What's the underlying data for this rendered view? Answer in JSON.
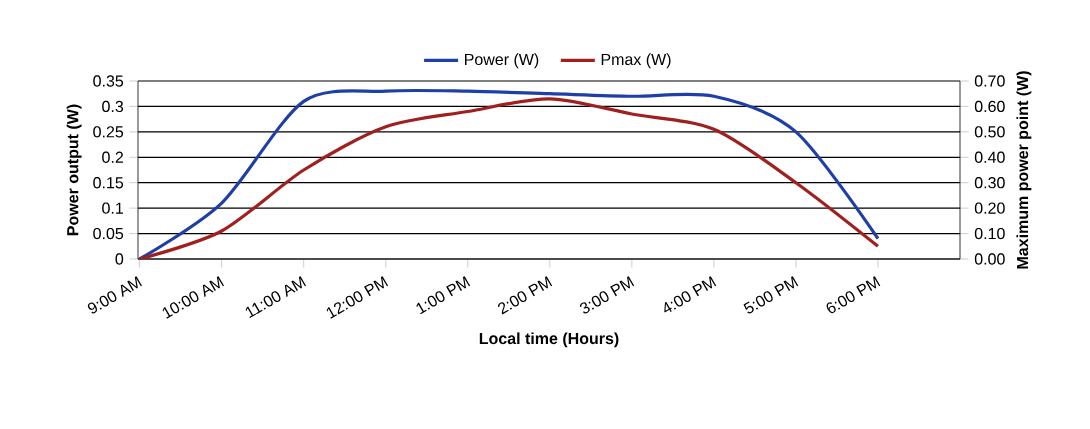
{
  "chart_data": {
    "type": "line",
    "xlabel": "Local time (Hours)",
    "ylabel": "Power output (W)",
    "y2label": "Maximum power point (W)",
    "categories": [
      "9:00 AM",
      "10:00 AM",
      "11:00 AM",
      "12:00 PM",
      "1:00 PM",
      "2:00 PM",
      "3:00 PM",
      "4:00 PM",
      "5:00 PM",
      "6:00 PM"
    ],
    "series": [
      {
        "name": "Power (W)",
        "color": "#1f3fa8",
        "values": [
          0,
          0.11,
          0.31,
          0.33,
          0.33,
          0.325,
          0.32,
          0.32,
          0.25,
          0.04
        ]
      },
      {
        "name": "Pmax (W)",
        "color": "#a02020",
        "axis": "y2",
        "values": [
          0,
          0.11,
          0.35,
          0.52,
          0.58,
          0.63,
          0.57,
          0.51,
          0.3,
          0.05
        ]
      }
    ],
    "ylim": [
      0,
      0.35
    ],
    "yticks": [
      0,
      0.05,
      0.1,
      0.15,
      0.2,
      0.25,
      0.3,
      0.35
    ],
    "y2lim": [
      0,
      0.7
    ],
    "y2ticks": [
      {
        "value": 0,
        "label": "0.00"
      },
      {
        "value": 0.1,
        "label": "0.10"
      },
      {
        "value": 0.2,
        "label": "0.20"
      },
      {
        "value": 0.3,
        "label": "0.30"
      },
      {
        "value": 0.4,
        "label": "0.40"
      },
      {
        "value": 0.5,
        "label": "0.50"
      },
      {
        "value": 0.6,
        "label": "0.60"
      },
      {
        "value": 0.7,
        "label": "0.70"
      }
    ],
    "grid": "y",
    "legend": "top",
    "line_style": "solid",
    "marker": "none"
  }
}
